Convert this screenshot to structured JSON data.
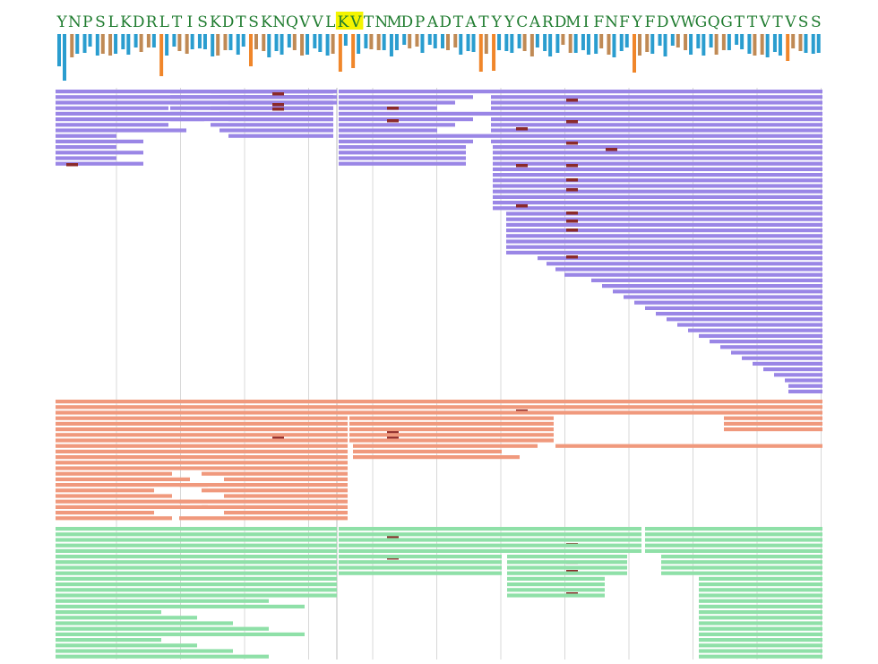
{
  "sequence": {
    "residues": "YNPSLKDRLTISKDTSKNQVVLKVTNMDPADTATYYCARDMIFNFYFDVWGQGTTVTVSS",
    "highlighted_residues": [
      "K",
      "V"
    ],
    "text_color": "#1e7b2e",
    "highlight_color": "#f4f400"
  },
  "bar_track": {
    "colors": {
      "mixed": "#c08a55",
      "teal": "#2a9dcf",
      "orange": "#f0862a"
    }
  },
  "alignment_groups": [
    {
      "name": "group-purple",
      "color": "#9a86e6",
      "border": "#7b66d2"
    },
    {
      "name": "group-salmon",
      "color": "#f0997d",
      "border": "#d87a5c"
    },
    {
      "name": "group-green",
      "color": "#8fe0a8",
      "border": "#5fc67f"
    }
  ],
  "mutation_color": "#8b2a2a",
  "grid_color": "#d8d8d8"
}
